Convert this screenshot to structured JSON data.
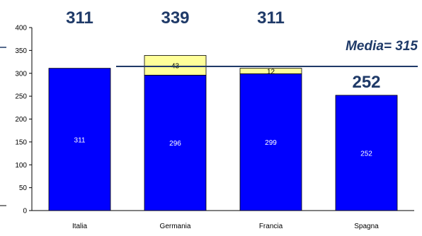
{
  "chart_data": {
    "type": "bar",
    "stacked": true,
    "categories": [
      "Italia",
      "Germania",
      "Francia",
      "Spagna"
    ],
    "series": [
      {
        "values": [
          311,
          296,
          299,
          252
        ],
        "color": "#0000ff"
      },
      {
        "values": [
          0,
          43,
          12,
          0
        ],
        "color": "#ffff99"
      }
    ],
    "totals": [
      311,
      339,
      311,
      252
    ],
    "ylim": [
      0,
      400
    ],
    "yticks": [
      0,
      50,
      100,
      150,
      200,
      250,
      300,
      350,
      400
    ],
    "average": {
      "value": 315,
      "label": "Media= 315",
      "color": "#1f3a68"
    },
    "grid": false,
    "legend": "none"
  }
}
